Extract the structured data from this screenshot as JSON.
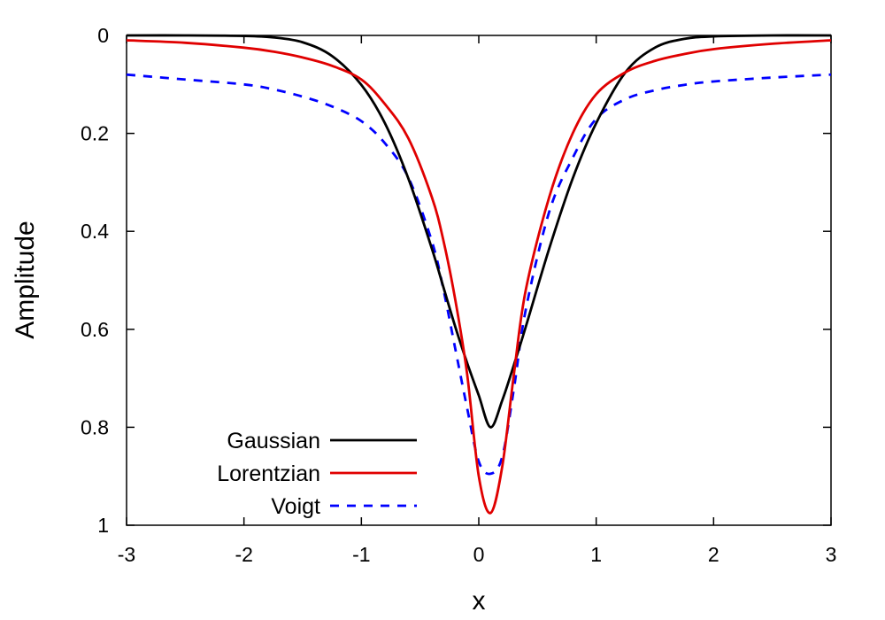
{
  "chart_data": {
    "type": "line",
    "xlabel": "x",
    "ylabel": "Amplitude",
    "xlim": [
      -3,
      3
    ],
    "ylim": [
      1,
      0
    ],
    "y_axis_inverted": true,
    "grid": false,
    "legend_position": "bottom-left",
    "x_ticks": [
      "-3",
      "-2",
      "-1",
      "0",
      "1",
      "2",
      "3"
    ],
    "y_ticks": [
      "0",
      "0.2",
      "0.4",
      "0.6",
      "0.8",
      "1"
    ],
    "x": [
      -3,
      -2.5,
      -2,
      -1.75,
      -1.5,
      -1.25,
      -1,
      -0.8,
      -0.6,
      -0.4,
      -0.3,
      -0.2,
      -0.1,
      0,
      0.1,
      0.2,
      0.3,
      0.4,
      0.6,
      0.8,
      1,
      1.25,
      1.5,
      1.75,
      2,
      2.5,
      3
    ],
    "series": [
      {
        "name": "Gaussian",
        "color": "#000000",
        "dash": "solid",
        "values": [
          0,
          0,
          0.001,
          0.004,
          0.014,
          0.042,
          0.101,
          0.179,
          0.292,
          0.435,
          0.515,
          0.595,
          0.668,
          0.735,
          0.8,
          0.745,
          0.672,
          0.595,
          0.435,
          0.292,
          0.179,
          0.075,
          0.025,
          0.007,
          0.002,
          0,
          0
        ]
      },
      {
        "name": "Lorentzian",
        "color": "#e00000",
        "dash": "solid",
        "values": [
          0.01,
          0.015,
          0.025,
          0.033,
          0.045,
          0.062,
          0.09,
          0.14,
          0.21,
          0.33,
          0.42,
          0.54,
          0.69,
          0.9,
          0.975,
          0.88,
          0.69,
          0.52,
          0.33,
          0.2,
          0.12,
          0.075,
          0.052,
          0.038,
          0.028,
          0.017,
          0.01
        ]
      },
      {
        "name": "Voigt",
        "color": "#0000ff",
        "dash": "dashed",
        "values": [
          0.08,
          0.09,
          0.1,
          0.11,
          0.125,
          0.145,
          0.175,
          0.22,
          0.29,
          0.42,
          0.52,
          0.64,
          0.76,
          0.87,
          0.895,
          0.86,
          0.72,
          0.56,
          0.36,
          0.25,
          0.17,
          0.13,
          0.112,
          0.101,
          0.094,
          0.086,
          0.08
        ]
      }
    ]
  }
}
